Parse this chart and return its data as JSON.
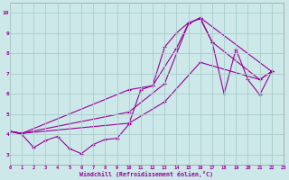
{
  "xlabel": "Windchill (Refroidissement éolien,°C)",
  "background_color": "#cce8e8",
  "grid_color": "#aacccc",
  "line_color": "#990099",
  "xlim": [
    0,
    23
  ],
  "ylim": [
    2.5,
    10.5
  ],
  "xticks": [
    0,
    1,
    2,
    3,
    4,
    5,
    6,
    7,
    8,
    9,
    10,
    11,
    12,
    13,
    14,
    15,
    16,
    17,
    18,
    19,
    20,
    21,
    22,
    23
  ],
  "yticks": [
    3,
    4,
    5,
    6,
    7,
    8,
    9,
    10
  ],
  "line1_x": [
    0,
    1,
    2,
    3,
    4,
    5,
    6,
    7,
    8,
    9,
    10,
    11,
    12,
    13,
    14,
    15,
    16,
    17,
    18,
    19,
    20,
    21,
    22
  ],
  "line1_y": [
    4.15,
    4.0,
    3.35,
    3.7,
    3.9,
    3.3,
    3.05,
    3.5,
    3.75,
    3.8,
    4.5,
    6.2,
    6.4,
    8.3,
    9.0,
    9.5,
    9.7,
    8.55,
    6.0,
    8.2,
    6.7,
    5.95,
    7.1
  ],
  "line2_x": [
    0,
    1,
    10,
    12,
    14,
    15,
    16,
    17,
    21,
    22
  ],
  "line2_y": [
    4.15,
    4.05,
    6.2,
    6.4,
    8.25,
    9.45,
    9.75,
    8.55,
    6.7,
    7.1
  ],
  "line3_x": [
    0,
    1,
    10,
    13,
    15,
    16,
    22
  ],
  "line3_y": [
    4.15,
    4.05,
    5.1,
    6.5,
    9.45,
    9.75,
    7.1
  ],
  "line4_x": [
    0,
    1,
    10,
    13,
    16,
    21,
    22
  ],
  "line4_y": [
    4.15,
    4.05,
    4.55,
    5.6,
    7.55,
    6.7,
    7.1
  ]
}
